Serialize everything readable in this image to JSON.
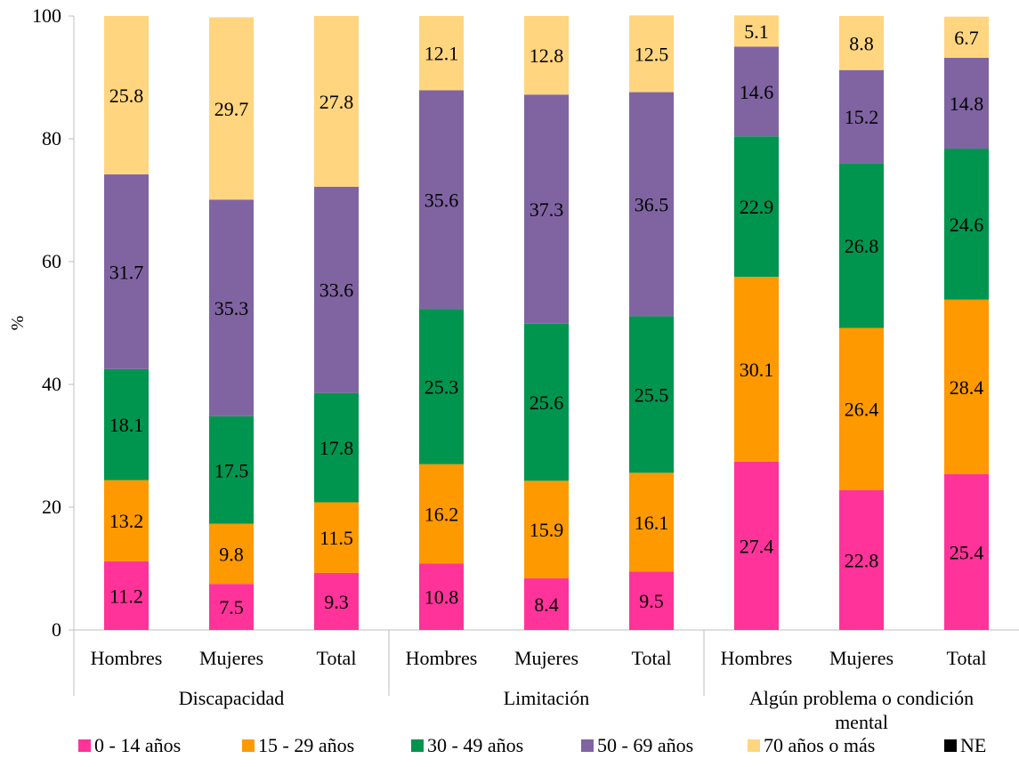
{
  "chart_data": {
    "type": "bar",
    "stacked": true,
    "title": "",
    "xlabel": "",
    "ylabel": "%",
    "ylim": [
      0,
      100
    ],
    "yticks": [
      0,
      20,
      40,
      60,
      80,
      100
    ],
    "grid": false,
    "legend_position": "bottom",
    "groups": [
      {
        "name": "Discapacidad",
        "categories": [
          "Hombres",
          "Mujeres",
          "Total"
        ]
      },
      {
        "name": "Limitación",
        "categories": [
          "Hombres",
          "Mujeres",
          "Total"
        ]
      },
      {
        "name": "Algún problema o condición mental",
        "categories": [
          "Hombres",
          "Mujeres",
          "Total"
        ]
      }
    ],
    "series": [
      {
        "name": "0 - 14 años",
        "color": "#FF3399",
        "values": [
          11.2,
          7.5,
          9.3,
          10.8,
          8.4,
          9.5,
          27.4,
          22.8,
          25.4
        ]
      },
      {
        "name": "15 - 29 años",
        "color": "#FF9900",
        "values": [
          13.2,
          9.8,
          11.5,
          16.2,
          15.9,
          16.1,
          30.1,
          26.4,
          28.4
        ]
      },
      {
        "name": "30 - 49 años",
        "color": "#00954F",
        "values": [
          18.1,
          17.5,
          17.8,
          25.3,
          25.6,
          25.5,
          22.9,
          26.8,
          24.6
        ]
      },
      {
        "name": "50 - 69 años",
        "color": "#8064A2",
        "values": [
          31.7,
          35.3,
          33.6,
          35.6,
          37.3,
          36.5,
          14.6,
          15.2,
          14.8
        ]
      },
      {
        "name": "70 años o más",
        "color": "#FFD580",
        "values": [
          25.8,
          29.7,
          27.8,
          12.1,
          12.8,
          12.5,
          5.1,
          8.8,
          6.7
        ]
      },
      {
        "name": "NE",
        "color": "#000000",
        "values": [
          0,
          0,
          0,
          0,
          0,
          0,
          0,
          0,
          0
        ]
      }
    ]
  }
}
